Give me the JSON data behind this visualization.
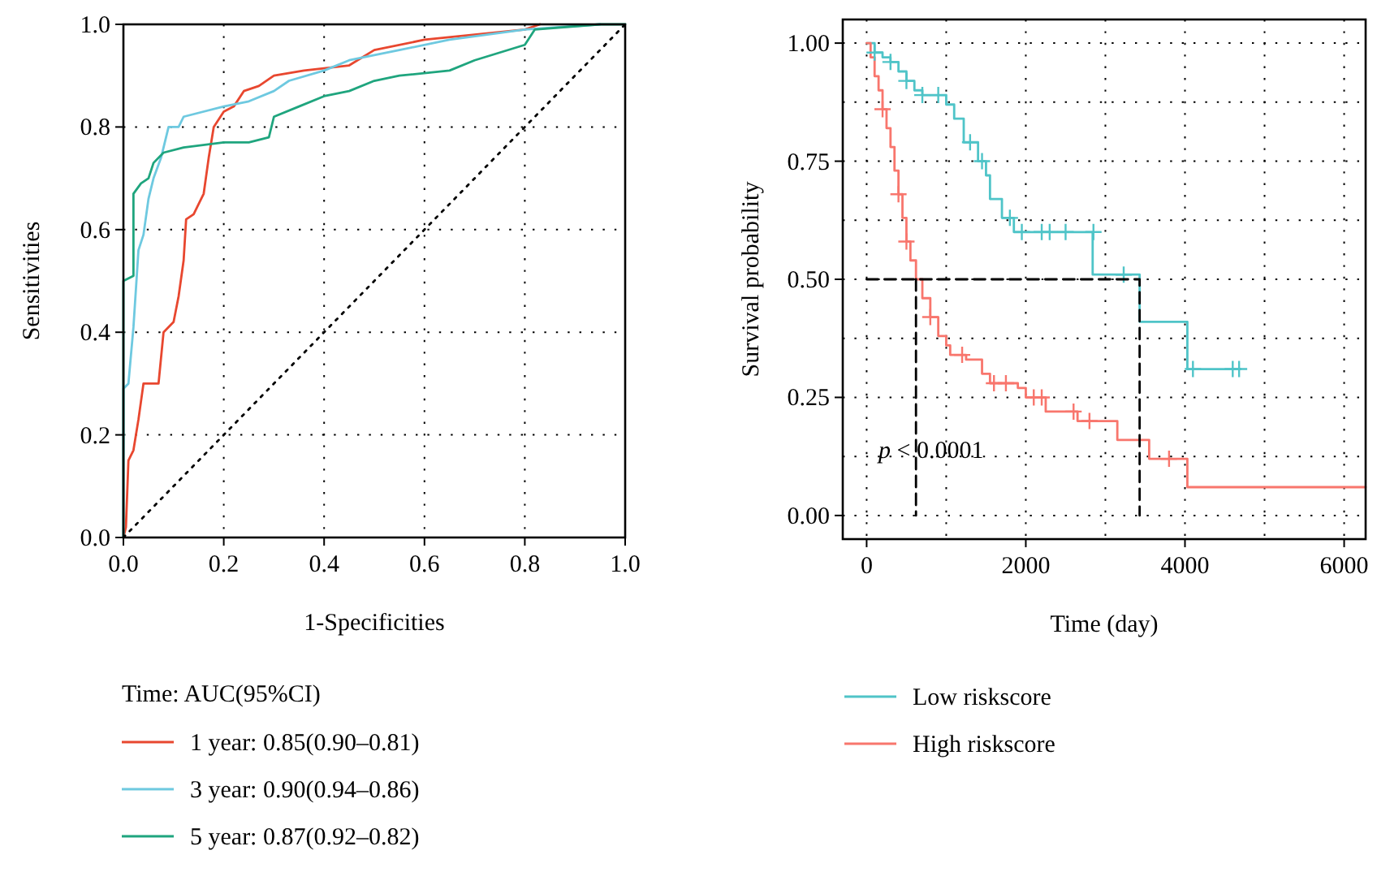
{
  "chart_data": [
    {
      "type": "line",
      "xlabel": "1-Specificities",
      "ylabel": "Sensitivities",
      "legend_title": "Time: AUC(95%CI)",
      "legend": "bottom",
      "grid": true,
      "xlim": [
        0,
        1
      ],
      "ylim": [
        0,
        1
      ],
      "xticks": [
        {
          "value": 0,
          "label": "0.0"
        },
        {
          "value": 0.2,
          "label": "0.2"
        },
        {
          "value": 0.4,
          "label": "0.4"
        },
        {
          "value": 0.6,
          "label": "0.6"
        },
        {
          "value": 0.8,
          "label": "0.8"
        },
        {
          "value": 1,
          "label": "1.0"
        }
      ],
      "yticks": [
        {
          "value": 0,
          "label": "0.0"
        },
        {
          "value": 0.2,
          "label": "0.2"
        },
        {
          "value": 0.4,
          "label": "0.4"
        },
        {
          "value": 0.6,
          "label": "0.6"
        },
        {
          "value": 0.8,
          "label": "0.8"
        },
        {
          "value": 1,
          "label": "1.0"
        }
      ],
      "series": [
        {
          "name": "1 year: 0.85(0.90–0.81)",
          "color": "#e8472f",
          "x": [
            0,
            0.005,
            0.01,
            0.02,
            0.03,
            0.04,
            0.07,
            0.08,
            0.1,
            0.11,
            0.12,
            0.125,
            0.14,
            0.16,
            0.17,
            0.18,
            0.2,
            0.22,
            0.24,
            0.27,
            0.3,
            0.36,
            0.45,
            0.5,
            0.6,
            0.8,
            0.83
          ],
          "values": [
            0,
            0.02,
            0.15,
            0.17,
            0.23,
            0.3,
            0.3,
            0.4,
            0.42,
            0.47,
            0.54,
            0.62,
            0.63,
            0.67,
            0.74,
            0.8,
            0.83,
            0.84,
            0.87,
            0.88,
            0.9,
            0.91,
            0.92,
            0.95,
            0.97,
            0.99,
            1
          ]
        },
        {
          "name": "3 year: 0.90(0.94–0.86)",
          "color": "#6ec9e0",
          "x": [
            0,
            0,
            0.01,
            0.02,
            0.03,
            0.04,
            0.05,
            0.06,
            0.075,
            0.09,
            0.11,
            0.12,
            0.2,
            0.25,
            0.3,
            0.33,
            0.4,
            0.45,
            0.55,
            0.65,
            0.8,
            0.95
          ],
          "values": [
            0,
            0.29,
            0.3,
            0.41,
            0.56,
            0.59,
            0.66,
            0.7,
            0.74,
            0.8,
            0.8,
            0.82,
            0.84,
            0.85,
            0.87,
            0.89,
            0.91,
            0.93,
            0.95,
            0.97,
            0.99,
            1
          ]
        },
        {
          "name": "5 year: 0.87(0.92–0.82)",
          "color": "#1fa57e",
          "x": [
            0,
            0,
            0.02,
            0.02,
            0.035,
            0.05,
            0.06,
            0.08,
            0.12,
            0.2,
            0.25,
            0.29,
            0.3,
            0.35,
            0.4,
            0.45,
            0.5,
            0.55,
            0.65,
            0.7,
            0.8,
            0.82,
            0.95,
            1
          ],
          "values": [
            0,
            0.5,
            0.51,
            0.67,
            0.69,
            0.7,
            0.73,
            0.75,
            0.76,
            0.77,
            0.77,
            0.78,
            0.82,
            0.84,
            0.86,
            0.87,
            0.89,
            0.9,
            0.91,
            0.93,
            0.96,
            0.99,
            1,
            1
          ]
        },
        {
          "color": "#000000",
          "line_style": "dotted",
          "x": [
            0,
            1
          ],
          "values": [
            0,
            1
          ]
        }
      ]
    },
    {
      "type": "step",
      "xlabel": "Time (day)",
      "ylabel": "Survival probability",
      "legend": "bottom",
      "grid": true,
      "xlim": [
        -300,
        6270
      ],
      "ylim": [
        -0.05,
        1.05
      ],
      "xticks": [
        0,
        {
          "value": 1000,
          "label": null
        },
        2000,
        {
          "value": 3000,
          "label": null
        },
        4000,
        {
          "value": 5000,
          "label": null
        },
        6000
      ],
      "yticks": [
        {
          "value": 0,
          "label": "0.00"
        },
        {
          "value": 0.125,
          "label": null
        },
        {
          "value": 0.25,
          "label": "0.25"
        },
        {
          "value": 0.375,
          "label": null
        },
        {
          "value": 0.5,
          "label": "0.50"
        },
        {
          "value": 0.625,
          "label": null
        },
        {
          "value": 0.75,
          "label": "0.75"
        },
        {
          "value": 0.875,
          "label": null
        },
        {
          "value": 1,
          "label": "1.00"
        }
      ],
      "annotations": [
        "p < 0.0001"
      ],
      "series": [
        {
          "name": "Low riskscore",
          "color": "#4fc4c8",
          "x": [
            0,
            100,
            200,
            300,
            400,
            500,
            600,
            700,
            900,
            1000,
            1100,
            1220,
            1400,
            1500,
            1550,
            1700,
            1850,
            2840,
            3430,
            4030,
            4700
          ],
          "values": [
            1,
            0.98,
            0.97,
            0.96,
            0.94,
            0.92,
            0.9,
            0.89,
            0.89,
            0.87,
            0.84,
            0.79,
            0.75,
            0.72,
            0.67,
            0.63,
            0.6,
            0.51,
            0.41,
            0.31,
            0.31
          ]
        },
        {
          "name": "High riskscore",
          "color": "#f8766d",
          "x": [
            0,
            50,
            100,
            150,
            200,
            250,
            300,
            350,
            400,
            450,
            500,
            550,
            620,
            700,
            800,
            900,
            1000,
            1050,
            1250,
            1450,
            1550,
            1900,
            2000,
            2250,
            2650,
            3150,
            3550,
            4030,
            6270
          ],
          "values": [
            1,
            0.97,
            0.93,
            0.9,
            0.86,
            0.82,
            0.78,
            0.73,
            0.68,
            0.63,
            0.58,
            0.54,
            0.5,
            0.46,
            0.42,
            0.38,
            0.36,
            0.34,
            0.33,
            0.3,
            0.28,
            0.27,
            0.25,
            0.22,
            0.2,
            0.16,
            0.12,
            0.06,
            0.06
          ]
        },
        {
          "type": "scatter",
          "marker": "cross",
          "color": "#4fc4c8",
          "x": [
            100,
            300,
            500,
            700,
            900,
            1300,
            1450,
            1800,
            1950,
            2200,
            2300,
            2500,
            2850,
            3230,
            4100,
            4600,
            4680
          ],
          "values": [
            0.98,
            0.96,
            0.92,
            0.89,
            0.89,
            0.79,
            0.75,
            0.63,
            0.6,
            0.6,
            0.6,
            0.6,
            0.6,
            0.51,
            0.31,
            0.31,
            0.31
          ]
        },
        {
          "type": "scatter",
          "marker": "cross",
          "color": "#f8766d",
          "x": [
            200,
            400,
            500,
            800,
            1200,
            1600,
            1750,
            2100,
            2200,
            2600,
            2800,
            3800
          ],
          "values": [
            0.86,
            0.68,
            0.58,
            0.42,
            0.34,
            0.28,
            0.28,
            0.25,
            0.25,
            0.22,
            0.2,
            0.12
          ]
        },
        {
          "type": "line",
          "line_style": "dashed",
          "color": "#000000",
          "x": [
            0,
            3430,
            3430
          ],
          "values": [
            0.5,
            0.5,
            0
          ]
        },
        {
          "type": "line",
          "line_style": "dashed",
          "color": "#000000",
          "x": [
            620,
            620
          ],
          "values": [
            0.5,
            0
          ]
        }
      ]
    }
  ]
}
